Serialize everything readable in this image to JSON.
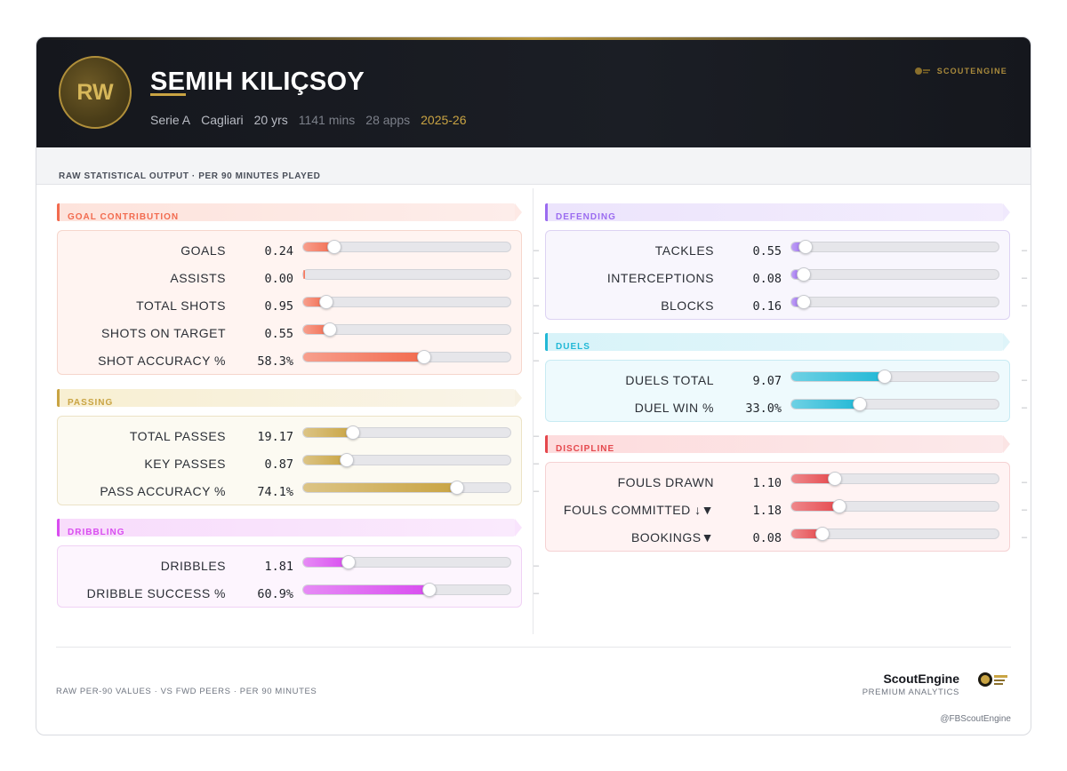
{
  "player": {
    "position": "RW",
    "name": "SEMIH KILIÇSOY",
    "league": "Serie A",
    "club": "Cagliari",
    "age": "20 yrs",
    "minutes": "1141 mins",
    "apps": "28 apps",
    "season": "2025-26"
  },
  "brand": {
    "top_label": "SCOUTENGINE",
    "name": "ScoutEngine",
    "tagline": "PREMIUM ANALYTICS",
    "handle": "@FBScoutEngine"
  },
  "subtitle": "RAW STATISTICAL OUTPUT · PER 90 MINUTES PLAYED",
  "footer_note": "RAW PER-90 VALUES · VS FWD PEERS · PER 90 MINUTES",
  "colors": {
    "header_bg": "#15171d",
    "gold": "#c9a443",
    "goal": "#f26b4f",
    "passing": "#c9a443",
    "dribbling": "#d94df0",
    "defending": "#9b6cf0",
    "duels": "#22b8d6",
    "discipline": "#e5484d"
  },
  "sections": {
    "goal": {
      "title": "GOAL CONTRIBUTION",
      "rows": [
        {
          "label": "GOALS",
          "value": "0.24",
          "level": 0.15,
          "peer": "–"
        },
        {
          "label": "ASSISTS",
          "value": "0.00",
          "level": 0.0,
          "peer": "–"
        },
        {
          "label": "TOTAL SHOTS",
          "value": "0.95",
          "level": 0.11,
          "peer": "–"
        },
        {
          "label": "SHOTS ON TARGET",
          "value": "0.55",
          "level": 0.13,
          "peer": "–"
        },
        {
          "label": "SHOT ACCURACY %",
          "value": "58.3%",
          "level": 0.583,
          "peer": "–"
        }
      ]
    },
    "passing": {
      "title": "PASSING",
      "rows": [
        {
          "label": "TOTAL PASSES",
          "value": "19.17",
          "level": 0.24,
          "peer": "–"
        },
        {
          "label": "KEY PASSES",
          "value": "0.87",
          "level": 0.21,
          "peer": "–"
        },
        {
          "label": "PASS ACCURACY %",
          "value": "74.1%",
          "level": 0.741,
          "peer": "–"
        }
      ]
    },
    "dribbling": {
      "title": "DRIBBLING",
      "rows": [
        {
          "label": "DRIBBLES",
          "value": "1.81",
          "level": 0.22,
          "peer": "–"
        },
        {
          "label": "DRIBBLE SUCCESS %",
          "value": "60.9%",
          "level": 0.609,
          "peer": "–"
        }
      ]
    },
    "defending": {
      "title": "DEFENDING",
      "rows": [
        {
          "label": "TACKLES",
          "value": "0.55",
          "level": 0.07,
          "peer": "–"
        },
        {
          "label": "INTERCEPTIONS",
          "value": "0.08",
          "level": 0.01,
          "peer": "–"
        },
        {
          "label": "BLOCKS",
          "value": "0.16",
          "level": 0.05,
          "peer": "–"
        }
      ]
    },
    "duels": {
      "title": "DUELS",
      "rows": [
        {
          "label": "DUELS TOTAL",
          "value": "9.07",
          "level": 0.45,
          "peer": "–"
        },
        {
          "label": "DUEL WIN %",
          "value": "33.0%",
          "level": 0.33,
          "peer": "–"
        }
      ]
    },
    "discipline": {
      "title": "DISCIPLINE",
      "rows": [
        {
          "label": "FOULS DRAWN",
          "value": "1.10",
          "level": 0.21,
          "peer": "–"
        },
        {
          "label": "FOULS COMMITTED ↓▼",
          "value": "1.18",
          "level": 0.23,
          "peer": "–"
        },
        {
          "label": "BOOKINGS▼",
          "value": "0.08",
          "level": 0.15,
          "peer": "–"
        }
      ]
    }
  }
}
